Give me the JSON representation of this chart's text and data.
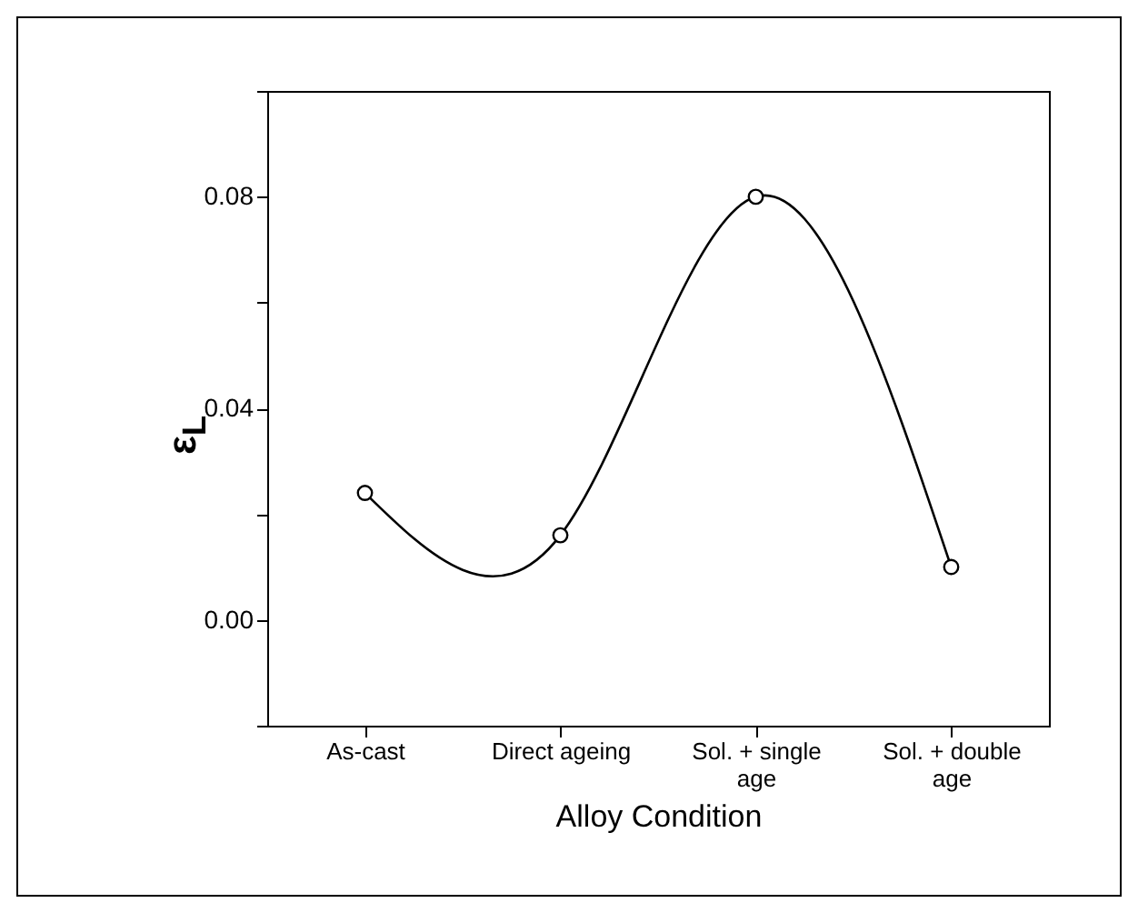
{
  "chart_data": {
    "type": "line",
    "xlabel": "Alloy Condition",
    "ylabel": "ε$_{L}$",
    "categories": [
      "As-cast",
      "Direct ageing",
      "Sol. + single age",
      "Sol. + double age"
    ],
    "series": [
      {
        "color": "#000000",
        "values": [
          0.024,
          0.016,
          0.08,
          0.01
        ]
      }
    ],
    "ylim": [
      -0.02,
      0.1
    ],
    "yticks": [
      {
        "value": -0.02,
        "label": null
      },
      {
        "value": 0.0,
        "label": "0.00"
      },
      {
        "value": 0.02,
        "label": null
      },
      {
        "value": 0.04,
        "label": "0.04"
      },
      {
        "value": 0.06,
        "label": null
      },
      {
        "value": 0.08,
        "label": "0.08"
      },
      {
        "value": 0.1,
        "label": null
      }
    ],
    "marker": "circle",
    "line_style": "solid"
  }
}
